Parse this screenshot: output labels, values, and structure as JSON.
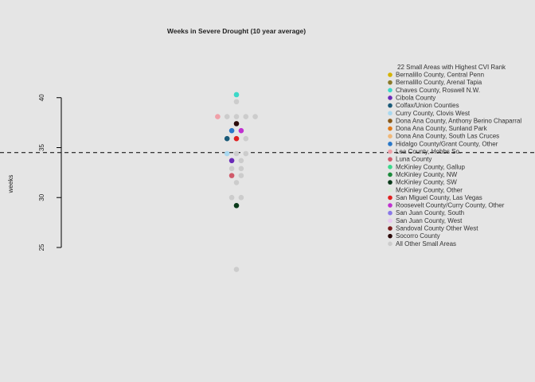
{
  "chart_data": {
    "type": "scatter",
    "title": "Weeks in Severe Drought (10 year average)",
    "xlabel": "",
    "ylabel": "weeks",
    "ylim": [
      19.5,
      45.0
    ],
    "yticks": [
      25,
      30,
      35,
      40
    ],
    "grid": false,
    "reference_line": {
      "y": 34.5,
      "style": "dashed",
      "color": "#000000"
    },
    "legend": {
      "title": "22 Small Areas with Highest CVI Rank",
      "placement": "right",
      "items": [
        {
          "label": "Bernalillo County, Central Penn",
          "color": "#d4b300"
        },
        {
          "label": "Bernalillo County, Arenal Tapia",
          "color": "#8a7a2a"
        },
        {
          "label": "Chaves County, Roswell N.W.",
          "color": "#3cd8c8"
        },
        {
          "label": "Cibola County",
          "color": "#6a2ab8"
        },
        {
          "label": "Colfax/Union Counties",
          "color": "#1a5a78"
        },
        {
          "label": "Curry County, Clovis West",
          "color": "#a8d8f0"
        },
        {
          "label": "Dona Ana County, Anthony Berino Chaparral",
          "color": "#8a5a1a"
        },
        {
          "label": "Dona Ana County, Sunland Park",
          "color": "#e07a1a"
        },
        {
          "label": "Dona Ana County, South Las Cruces",
          "color": "#f0b878"
        },
        {
          "label": "Hidalgo County/Grant County, Other",
          "color": "#2a78c8"
        },
        {
          "label": "Lea County, Hobbs So.",
          "color": "#f0a0a8"
        },
        {
          "label": "Luna County",
          "color": "#d05a6a"
        },
        {
          "label": "McKinley County, Gallup",
          "color": "#3ad88a"
        },
        {
          "label": "McKinley County, NW",
          "color": "#1a8a3a"
        },
        {
          "label": "McKinley County, SW",
          "color": "#0a3a1a"
        },
        {
          "label": "McKinley County, Other",
          "color": "#d8ecd8"
        },
        {
          "label": "San Miguel County, Las Vegas",
          "color": "#e02020"
        },
        {
          "label": "Roosevelt County/Curry County, Other",
          "color": "#c030d0"
        },
        {
          "label": "San Juan County, South",
          "color": "#8a78e8"
        },
        {
          "label": "San Juan County, West",
          "color": "#e8c8f0"
        },
        {
          "label": "Sandoval County Other West",
          "color": "#7a1a1a"
        },
        {
          "label": "Socorro County",
          "color": "#2a0a0a"
        },
        {
          "label": "All Other Small Areas",
          "color": "#cccccc"
        }
      ]
    },
    "points": [
      {
        "x": 0,
        "y": 40.3,
        "group": "Chaves County, Roswell N.W."
      },
      {
        "x": 0,
        "y": 39.6,
        "group": "All Other Small Areas"
      },
      {
        "x": -2,
        "y": 38.1,
        "group": "Lea County, Hobbs So."
      },
      {
        "x": -1,
        "y": 38.1,
        "group": "All Other Small Areas"
      },
      {
        "x": 0,
        "y": 38.1,
        "group": "All Other Small Areas"
      },
      {
        "x": 1,
        "y": 38.1,
        "group": "All Other Small Areas"
      },
      {
        "x": 2,
        "y": 38.1,
        "group": "All Other Small Areas"
      },
      {
        "x": 0,
        "y": 37.4,
        "group": "Socorro County"
      },
      {
        "x": -0.5,
        "y": 36.7,
        "group": "Hidalgo County/Grant County, Other"
      },
      {
        "x": 0.5,
        "y": 36.7,
        "group": "Roosevelt County/Curry County, Other"
      },
      {
        "x": -1,
        "y": 35.9,
        "group": "Colfax/Union Counties"
      },
      {
        "x": 0,
        "y": 35.9,
        "group": "San Miguel County, Las Vegas"
      },
      {
        "x": 1,
        "y": 35.9,
        "group": "All Other Small Areas"
      },
      {
        "x": -1,
        "y": 34.4,
        "group": "Curry County, Clovis West"
      },
      {
        "x": 0,
        "y": 34.4,
        "group": "All Other Small Areas"
      },
      {
        "x": 1,
        "y": 34.4,
        "group": "All Other Small Areas"
      },
      {
        "x": -0.5,
        "y": 33.7,
        "group": "Cibola County"
      },
      {
        "x": 0.5,
        "y": 33.7,
        "group": "All Other Small Areas"
      },
      {
        "x": -0.5,
        "y": 32.9,
        "group": "All Other Small Areas"
      },
      {
        "x": 0.5,
        "y": 32.9,
        "group": "All Other Small Areas"
      },
      {
        "x": -0.5,
        "y": 32.2,
        "group": "Luna County"
      },
      {
        "x": 0.5,
        "y": 32.2,
        "group": "All Other Small Areas"
      },
      {
        "x": 0,
        "y": 31.5,
        "group": "All Other Small Areas"
      },
      {
        "x": -0.5,
        "y": 30.0,
        "group": "All Other Small Areas"
      },
      {
        "x": 0.5,
        "y": 30.0,
        "group": "All Other Small Areas"
      },
      {
        "x": 0,
        "y": 29.2,
        "group": "McKinley County, SW"
      },
      {
        "x": 0,
        "y": 22.8,
        "group": "All Other Small Areas"
      }
    ]
  }
}
